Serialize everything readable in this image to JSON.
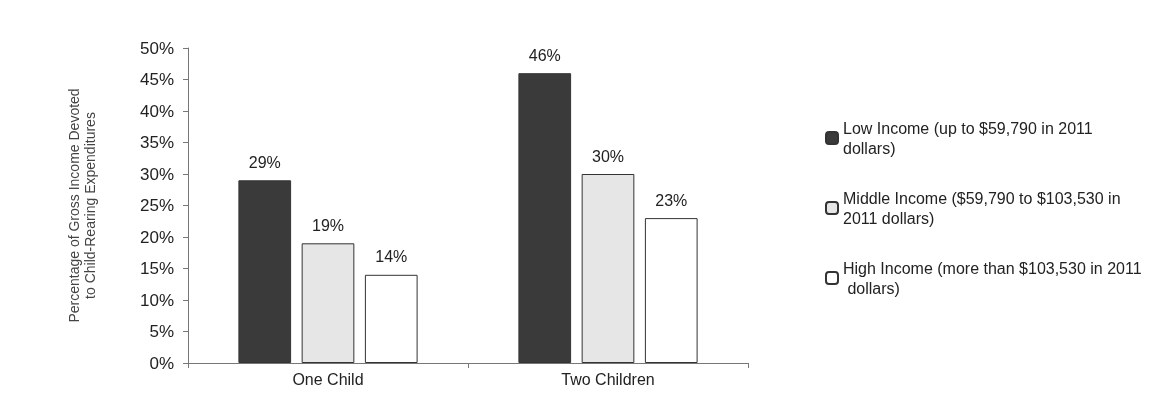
{
  "chart_data": {
    "type": "bar",
    "ylabel": "Percentage of Gross Income Devoted\nto Child-Rearing Expenditures",
    "categories": [
      "One Child",
      "Two Children"
    ],
    "series": [
      {
        "name": "Low Income (up to $59,790 in 2011 dollars)",
        "color": "#3a3a3a",
        "values": [
          29,
          46
        ],
        "value_labels": [
          "29%",
          "46%"
        ]
      },
      {
        "name": "Middle Income ($59,790 to $103,530 in 2011 dollars)",
        "color": "#e6e6e6",
        "values": [
          19,
          30
        ],
        "value_labels": [
          "19%",
          "30%"
        ]
      },
      {
        "name": "High Income (more than $103,530 in 2011 dollars)",
        "color": "#ffffff",
        "values": [
          14,
          23
        ],
        "value_labels": [
          "14%",
          "23%"
        ]
      }
    ],
    "ylim": [
      0,
      50
    ],
    "yticks": [
      {
        "value": 0,
        "label": "0%"
      },
      {
        "value": 5,
        "label": "5%"
      },
      {
        "value": 10,
        "label": "10%"
      },
      {
        "value": 15,
        "label": "15%"
      },
      {
        "value": 20,
        "label": "20%"
      },
      {
        "value": 25,
        "label": "25%"
      },
      {
        "value": 30,
        "label": "30%"
      },
      {
        "value": 35,
        "label": "35%"
      },
      {
        "value": 40,
        "label": "40%"
      },
      {
        "value": 45,
        "label": "45%"
      },
      {
        "value": 50,
        "label": "50%"
      }
    ],
    "grid": false,
    "legend": "right"
  }
}
